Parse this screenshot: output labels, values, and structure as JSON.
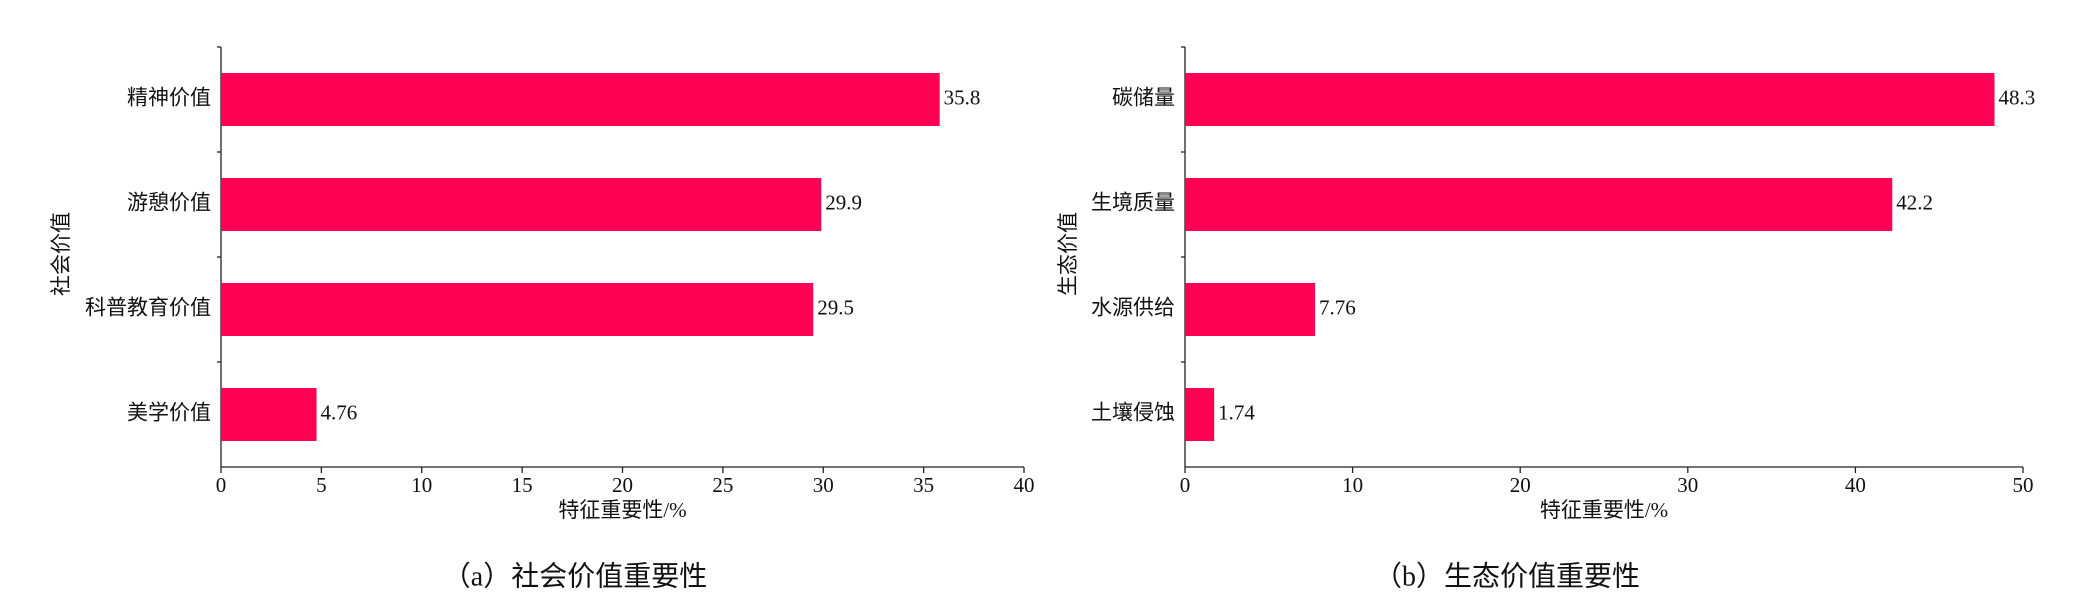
{
  "chart_data": [
    {
      "type": "barh",
      "categories": [
        "精神价值",
        "游憩价值",
        "科普教育价值",
        "美学价值"
      ],
      "values": [
        35.8,
        29.9,
        29.5,
        4.76
      ],
      "color": "#ff0055",
      "xlim": [
        0,
        40
      ],
      "xticks": [
        0,
        5,
        10,
        15,
        20,
        25,
        30,
        35,
        40
      ],
      "xlabel": "特征重要性/%",
      "ylabel": "社会价值",
      "caption": "（a）社会价值重要性"
    },
    {
      "type": "barh",
      "categories": [
        "碳储量",
        "生境质量",
        "水源供给",
        "土壤侵蚀"
      ],
      "values": [
        48.3,
        42.2,
        7.76,
        1.74
      ],
      "color": "#ff0055",
      "xlim": [
        0,
        50
      ],
      "xticks": [
        0,
        10,
        20,
        30,
        40,
        50
      ],
      "xlabel": "特征重要性/%",
      "ylabel": "生态价值",
      "caption": "（b）生态价值重要性"
    }
  ]
}
